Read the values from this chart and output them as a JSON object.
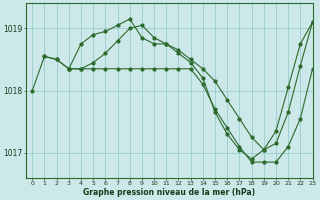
{
  "xlabel": "Graphe pression niveau de la mer (hPa)",
  "bg_color": "#cce8e8",
  "grid_color": "#99cccc",
  "line_color": "#2d6a2d",
  "xlim": [
    -0.5,
    23
  ],
  "ylim": [
    1016.6,
    1019.4
  ],
  "yticks": [
    1017,
    1018,
    1019
  ],
  "xticks": [
    0,
    1,
    2,
    3,
    4,
    5,
    6,
    7,
    8,
    9,
    10,
    11,
    12,
    13,
    14,
    15,
    16,
    17,
    18,
    19,
    20,
    21,
    22,
    23
  ],
  "line1_x": [
    1,
    2,
    3,
    4,
    5,
    6,
    7,
    8,
    9,
    10,
    11,
    12,
    13,
    14,
    15,
    16,
    17,
    18,
    19,
    20,
    21,
    22,
    23
  ],
  "line1_y": [
    1018.55,
    1018.5,
    1018.35,
    1018.75,
    1018.9,
    1018.95,
    1019.05,
    1019.15,
    1018.85,
    1018.75,
    1018.75,
    1018.6,
    1018.45,
    1018.2,
    1017.65,
    1017.3,
    1017.05,
    1016.9,
    1017.05,
    1017.35,
    1018.05,
    1018.75,
    1019.1
  ],
  "line2_x": [
    0,
    1,
    2,
    3,
    4,
    5,
    6,
    7,
    8,
    9,
    10,
    11,
    12,
    13,
    14,
    15,
    16,
    17,
    18,
    19,
    20,
    21,
    22,
    23
  ],
  "line2_y": [
    1018.0,
    1018.55,
    1018.5,
    1018.35,
    1018.35,
    1018.45,
    1018.6,
    1018.8,
    1019.0,
    1019.05,
    1018.85,
    1018.75,
    1018.65,
    1018.5,
    1018.35,
    1018.15,
    1017.85,
    1017.55,
    1017.25,
    1017.05,
    1017.15,
    1017.65,
    1018.4,
    1019.1
  ],
  "line3_x": [
    3,
    4,
    5,
    6,
    7,
    8,
    9,
    10,
    11,
    12,
    13,
    14,
    15,
    16,
    17,
    18,
    19,
    20,
    21,
    22,
    23
  ],
  "line3_y": [
    1018.35,
    1018.35,
    1018.35,
    1018.35,
    1018.35,
    1018.35,
    1018.35,
    1018.35,
    1018.35,
    1018.35,
    1018.35,
    1018.1,
    1017.7,
    1017.4,
    1017.1,
    1016.85,
    1016.85,
    1016.85,
    1017.1,
    1017.55,
    1018.35
  ]
}
